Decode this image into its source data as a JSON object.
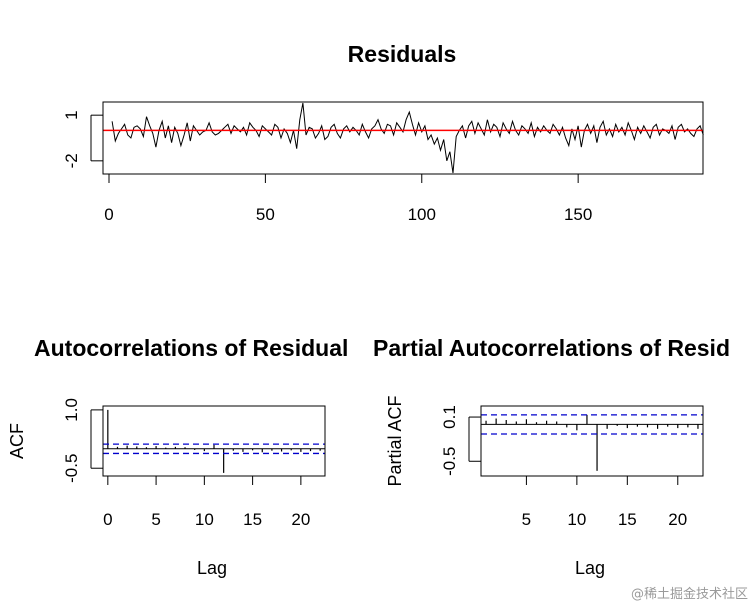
{
  "watermark": "@稀土掘金技术社区",
  "chart_data": [
    {
      "type": "line",
      "title": "Residuals",
      "xlabel": "",
      "ylabel": "",
      "xlim": [
        0,
        188
      ],
      "ylim": [
        -2.8,
        1.8
      ],
      "x_ticks": [
        0,
        50,
        100,
        150
      ],
      "y_ticks": [
        1,
        -2
      ],
      "grid": false,
      "reference_line": {
        "y": 0,
        "color": "#ff0000"
      },
      "line_color": "#000000",
      "series": [
        {
          "x_start": 1,
          "values": [
            0.6,
            -0.7,
            -0.2,
            0.1,
            0.4,
            -0.3,
            -0.5,
            0.2,
            0.3,
            0.1,
            -0.4,
            0.9,
            0.3,
            -0.2,
            -1.1,
            0.0,
            0.6,
            -0.5,
            0.3,
            -0.8,
            0.2,
            -0.2,
            -1.0,
            -0.3,
            0.5,
            -0.7,
            0.3,
            0.0,
            -0.3,
            -0.1,
            0.0,
            0.5,
            -0.1,
            -0.3,
            -0.2,
            0.0,
            0.2,
            0.4,
            -0.2,
            0.3,
            0.1,
            -0.1,
            0.2,
            -0.3,
            0.5,
            0.2,
            0.0,
            -0.4,
            0.3,
            0.1,
            -0.1,
            -0.3,
            0.4,
            0.2,
            -0.5,
            0.1,
            -0.2,
            -0.8,
            0.0,
            -1.2,
            0.7,
            1.8,
            -0.3,
            0.2,
            0.1,
            -0.5,
            -0.2,
            0.3,
            -0.6,
            -0.4,
            0.2,
            0.4,
            -0.2,
            -0.5,
            0.1,
            0.3,
            -0.1,
            0.2,
            0.0,
            -0.3,
            0.4,
            -0.1,
            -0.5,
            0.1,
            0.3,
            0.7,
            0.1,
            -0.2,
            0.4,
            0.3,
            -0.3,
            0.5,
            0.2,
            -0.1,
            0.7,
            1.2,
            0.4,
            -0.3,
            0.5,
            -0.1,
            0.3,
            -0.6,
            -0.3,
            -0.9,
            -0.5,
            -1.3,
            -0.6,
            -2.0,
            -1.4,
            -2.8,
            -0.4,
            0.0,
            0.3,
            -0.5,
            0.3,
            0.6,
            -0.2,
            0.5,
            0.1,
            -0.3,
            0.7,
            -0.1,
            0.4,
            0.2,
            -0.4,
            0.5,
            0.1,
            -0.2,
            0.6,
            0.0,
            -0.3,
            0.3,
            0.1,
            -0.2,
            0.5,
            -0.4,
            0.2,
            -0.1,
            0.3,
            0.0,
            -0.2,
            0.4,
            0.1,
            -0.3,
            0.2,
            -0.5,
            -1.0,
            0.1,
            -0.6,
            0.3,
            -1.1,
            0.0,
            0.4,
            -0.2,
            0.3,
            -0.8,
            0.2,
            0.6,
            -0.3,
            0.1,
            -0.4,
            0.4,
            -0.1,
            0.2,
            -0.3,
            0.5,
            0.0,
            -0.6,
            0.2,
            -0.2,
            0.3,
            -0.1,
            -0.5,
            0.2,
            0.4,
            -0.3,
            0.1,
            0.0,
            -0.2,
            0.3,
            -0.6,
            0.2,
            0.4,
            -0.1,
            0.1,
            -0.2,
            -0.4,
            0.1,
            0.3,
            -0.3
          ]
        }
      ]
    },
    {
      "type": "bar",
      "subtype": "acf",
      "title": "Autocorrelations of Residual",
      "xlabel": "Lag",
      "ylabel": "ACF",
      "xlim": [
        -0.5,
        22.5
      ],
      "ylim": [
        -0.7,
        1.1
      ],
      "x_ticks": [
        0,
        5,
        10,
        15,
        20
      ],
      "y_ticks": [
        1.0,
        -0.5
      ],
      "y_tick_labels": [
        "1.0",
        "-0.5"
      ],
      "confidence_band": [
        0.12,
        -0.12
      ],
      "band_color": "#0000cc",
      "lags": [
        0,
        1,
        2,
        3,
        4,
        5,
        6,
        7,
        8,
        9,
        10,
        11,
        12,
        13,
        14,
        15,
        16,
        17,
        18,
        19,
        20,
        21,
        22
      ],
      "values": [
        1.0,
        0.05,
        0.08,
        0.06,
        0.04,
        0.07,
        0.03,
        0.05,
        0.04,
        -0.03,
        -0.06,
        0.1,
        -0.62,
        -0.05,
        -0.08,
        -0.04,
        -0.09,
        -0.05,
        -0.07,
        -0.04,
        -0.08,
        -0.06,
        -0.05
      ]
    },
    {
      "type": "bar",
      "subtype": "pacf",
      "title": "Partial Autocorrelations of Resid",
      "xlabel": "Lag",
      "ylabel": "Partial ACF",
      "xlim": [
        0.5,
        22.5
      ],
      "ylim": [
        -0.7,
        0.25
      ],
      "x_ticks": [
        5,
        10,
        15,
        20
      ],
      "y_ticks": [
        0.1,
        -0.5
      ],
      "y_tick_labels": [
        "0.1",
        "-0.5"
      ],
      "confidence_band": [
        0.13,
        -0.13
      ],
      "band_color": "#0000cc",
      "lags": [
        1,
        2,
        3,
        4,
        5,
        6,
        7,
        8,
        9,
        10,
        11,
        12,
        13,
        14,
        15,
        16,
        17,
        18,
        19,
        20,
        21,
        22
      ],
      "values": [
        0.05,
        0.08,
        0.06,
        0.04,
        0.07,
        0.03,
        0.05,
        0.04,
        -0.04,
        -0.08,
        0.13,
        -0.63,
        -0.06,
        -0.02,
        -0.05,
        -0.03,
        -0.04,
        -0.06,
        -0.03,
        -0.05,
        -0.04,
        -0.06
      ]
    }
  ]
}
